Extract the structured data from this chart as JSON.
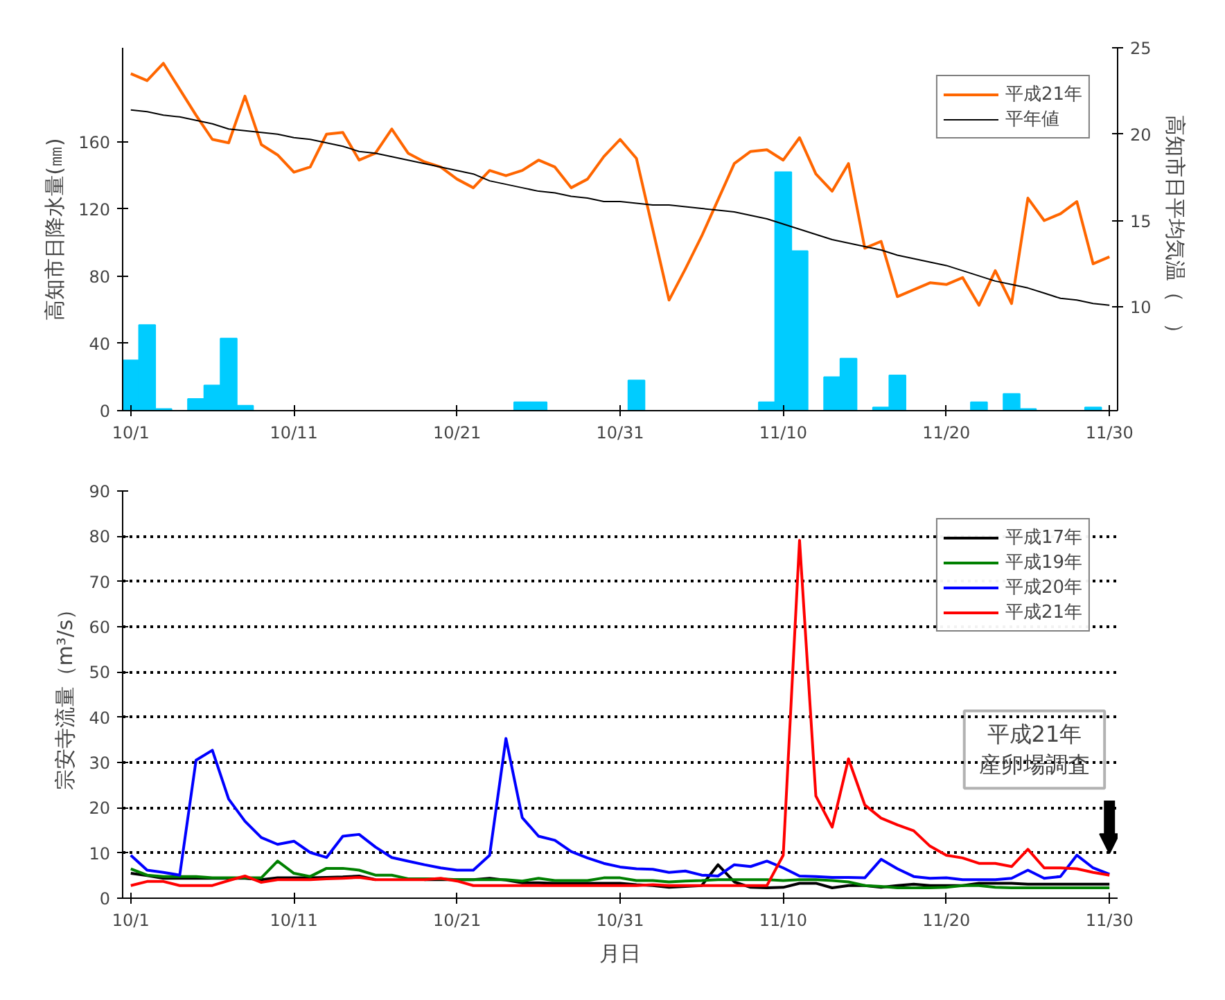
{
  "chart_data": [
    {
      "type": "bar",
      "ylabel": "高知市日降水量(㎜)",
      "y2label": "高知市日平均気温（　）",
      "legend": "top right",
      "categories": [
        "10/1",
        null,
        null,
        null,
        null,
        null,
        null,
        null,
        null,
        null,
        "10/11",
        null,
        null,
        null,
        null,
        null,
        null,
        null,
        null,
        null,
        "10/21",
        null,
        null,
        null,
        null,
        null,
        null,
        null,
        null,
        null,
        "10/31",
        null,
        null,
        null,
        null,
        null,
        null,
        null,
        null,
        null,
        "11/10",
        null,
        null,
        null,
        null,
        null,
        null,
        null,
        null,
        null,
        "11/20",
        null,
        null,
        null,
        null,
        null,
        null,
        null,
        null,
        null,
        "11/30"
      ],
      "ylim": [
        0,
        216
      ],
      "yticks": [
        0,
        40,
        80,
        120,
        160
      ],
      "y2lim": [
        4,
        25
      ],
      "y2ticks": [
        10,
        15,
        20,
        25
      ],
      "series": [
        {
          "type": "bar",
          "color": "#00ccff",
          "values": [
            30,
            51,
            1,
            null,
            7,
            15,
            43,
            3,
            null,
            null,
            null,
            null,
            null,
            null,
            null,
            null,
            null,
            null,
            null,
            null,
            null,
            null,
            null,
            null,
            5,
            5,
            null,
            null,
            null,
            null,
            null,
            18,
            null,
            null,
            null,
            null,
            null,
            null,
            null,
            5,
            142,
            95,
            null,
            20,
            31,
            null,
            2,
            21,
            null,
            null,
            null,
            null,
            5,
            null,
            10,
            1,
            null,
            null,
            null,
            2,
            null
          ]
        },
        {
          "name": "平成21年",
          "type": "line",
          "axis": "y2",
          "color": "#ff6600",
          "values": [
            23.5,
            23.1,
            24.1,
            22.6,
            21.1,
            19.7,
            19.5,
            22.2,
            19.4,
            18.8,
            17.8,
            18.1,
            20.0,
            20.1,
            18.5,
            18.9,
            20.3,
            18.9,
            18.4,
            18.1,
            17.4,
            16.9,
            17.9,
            17.6,
            17.9,
            18.5,
            18.1,
            16.9,
            17.4,
            18.7,
            19.7,
            18.6,
            14.5,
            10.4,
            12.2,
            14.1,
            16.2,
            18.3,
            19.0,
            19.1,
            18.5,
            19.8,
            17.7,
            16.7,
            18.3,
            13.4,
            13.8,
            10.6,
            11.0,
            11.4,
            11.3,
            11.7,
            10.1,
            12.1,
            10.2,
            16.3,
            15.0,
            15.4,
            16.1,
            12.5,
            12.9
          ]
        },
        {
          "name": "平年値",
          "type": "line",
          "axis": "y2",
          "color": "#000000",
          "values": [
            21.4,
            21.3,
            21.1,
            21.0,
            20.8,
            20.6,
            20.3,
            20.2,
            20.1,
            20.0,
            19.8,
            19.7,
            19.5,
            19.3,
            19.0,
            18.9,
            18.7,
            18.5,
            18.3,
            18.1,
            17.9,
            17.7,
            17.3,
            17.1,
            16.9,
            16.7,
            16.6,
            16.4,
            16.3,
            16.1,
            16.1,
            16.0,
            15.9,
            15.9,
            15.8,
            15.7,
            15.6,
            15.5,
            15.3,
            15.1,
            14.8,
            14.5,
            14.2,
            13.9,
            13.7,
            13.5,
            13.3,
            13.0,
            12.8,
            12.6,
            12.4,
            12.1,
            11.8,
            11.5,
            11.3,
            11.1,
            10.8,
            10.5,
            10.4,
            10.2,
            10.1
          ]
        }
      ]
    },
    {
      "type": "line",
      "xlabel": "月日",
      "ylabel": "宗安寺流量（m³/s）",
      "legend": "top right",
      "grid": "y",
      "categories": [
        "10/1",
        null,
        null,
        null,
        null,
        null,
        null,
        null,
        null,
        null,
        "10/11",
        null,
        null,
        null,
        null,
        null,
        null,
        null,
        null,
        null,
        "10/21",
        null,
        null,
        null,
        null,
        null,
        null,
        null,
        null,
        null,
        "10/31",
        null,
        null,
        null,
        null,
        null,
        null,
        null,
        null,
        null,
        "11/10",
        null,
        null,
        null,
        null,
        null,
        null,
        null,
        null,
        null,
        "11/20",
        null,
        null,
        null,
        null,
        null,
        null,
        null,
        null,
        null,
        "11/30"
      ],
      "ylim": [
        0,
        90
      ],
      "yticks": [
        0,
        10,
        20,
        30,
        40,
        50,
        60,
        70,
        80,
        90
      ],
      "series": [
        {
          "name": "平成17年",
          "color": "#000000",
          "values": [
            5.5,
            5.0,
            4.4,
            4.4,
            4.4,
            4.4,
            4.4,
            4.4,
            4.1,
            4.5,
            4.5,
            4.5,
            4.6,
            4.7,
            4.9,
            4.1,
            null,
            null,
            4.1,
            4.1,
            4.1,
            4.1,
            4.4,
            4.0,
            3.4,
            3.4,
            3.3,
            3.3,
            3.3,
            3.3,
            3.3,
            3.0,
            2.8,
            2.4,
            2.6,
            2.8,
            7.4,
            3.6,
            2.4,
            2.3,
            2.4,
            3.3,
            3.3,
            2.3,
            2.8,
            2.8,
            2.4,
            2.8,
            3.1,
            2.8,
            2.8,
            2.8,
            3.3,
            3.3,
            3.3,
            3.1,
            3.1,
            3.1,
            3.1,
            3.1,
            3.1
          ]
        },
        {
          "name": "平成19年",
          "color": "#008000",
          "values": [
            6.5,
            5.1,
            4.8,
            4.8,
            4.8,
            4.5,
            4.5,
            4.5,
            4.5,
            8.2,
            5.5,
            4.8,
            6.6,
            6.6,
            6.2,
            5.1,
            5.1,
            4.3,
            4.3,
            4.3,
            4.1,
            4.1,
            4.1,
            4.1,
            3.8,
            4.4,
            3.9,
            3.9,
            3.9,
            4.5,
            4.5,
            3.9,
            3.9,
            3.6,
            3.8,
            3.9,
            4.1,
            4.1,
            4.1,
            4.1,
            3.9,
            4.1,
            4.1,
            3.9,
            3.6,
            2.8,
            2.6,
            2.3,
            2.3,
            2.3,
            2.4,
            2.8,
            2.8,
            2.4,
            2.3,
            2.3,
            2.3,
            2.3,
            2.3,
            2.3,
            2.3
          ]
        },
        {
          "name": "平成20年",
          "color": "#0000ff",
          "values": [
            9.5,
            6.2,
            5.7,
            5.1,
            30.5,
            32.7,
            21.9,
            17.0,
            13.4,
            11.9,
            12.6,
            10.1,
            9.0,
            13.7,
            14.1,
            11.3,
            9.0,
            8.2,
            7.4,
            6.7,
            6.2,
            6.2,
            9.5,
            35.3,
            17.8,
            13.7,
            12.8,
            10.3,
            8.9,
            7.7,
            6.9,
            6.5,
            6.4,
            5.7,
            6.0,
            5.1,
            4.9,
            7.4,
            7.0,
            8.2,
            6.7,
            4.9,
            4.8,
            4.6,
            4.6,
            4.5,
            8.6,
            6.5,
            4.8,
            4.4,
            4.5,
            4.1,
            4.1,
            4.1,
            4.4,
            6.2,
            4.4,
            4.8,
            9.5,
            6.7,
            5.3
          ]
        },
        {
          "name": "平成21年",
          "color": "#ff0000",
          "values": [
            2.8,
            3.7,
            3.7,
            2.8,
            2.8,
            2.8,
            3.9,
            4.9,
            3.5,
            4.1,
            4.1,
            4.1,
            4.3,
            4.4,
            4.6,
            4.1,
            4.1,
            4.1,
            4.1,
            4.4,
            3.8,
            2.8,
            2.8,
            2.8,
            2.8,
            2.8,
            2.8,
            2.8,
            2.8,
            2.8,
            2.8,
            2.8,
            3.0,
            2.8,
            2.8,
            2.8,
            2.8,
            2.8,
            2.8,
            2.8,
            9.5,
            79.1,
            22.6,
            15.7,
            30.8,
            20.6,
            17.7,
            16.2,
            14.9,
            11.5,
            9.5,
            8.9,
            7.7,
            7.7,
            7.0,
            10.8,
            6.7,
            6.7,
            6.5,
            5.7,
            5.1
          ]
        }
      ],
      "annotations": [
        "平成21年",
        "産卵場調査"
      ]
    }
  ]
}
